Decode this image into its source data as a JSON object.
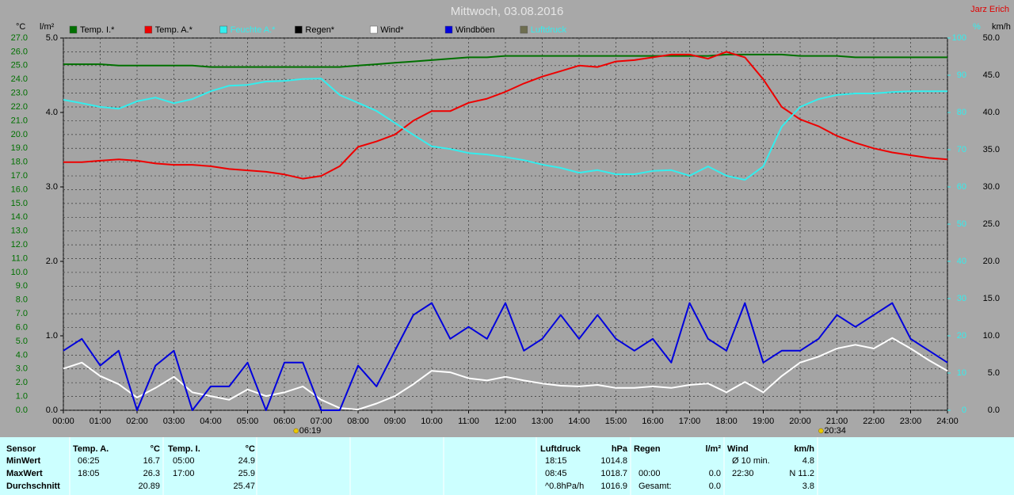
{
  "chart_data": {
    "type": "line",
    "title": "Mittwoch, 03.08.2016",
    "corner_label": "Jarz Erich",
    "y_label": "°C",
    "y3_label": "l/m²",
    "y2_label": "%",
    "y4_label": "km/h",
    "grid": true,
    "x": [
      0,
      0.5,
      1,
      1.5,
      2,
      2.5,
      3,
      3.5,
      4,
      4.5,
      5,
      5.5,
      6,
      6.5,
      7,
      7.5,
      8,
      8.5,
      9,
      9.5,
      10,
      10.5,
      11,
      11.5,
      12,
      12.5,
      13,
      13.5,
      14,
      14.5,
      15,
      15.5,
      16,
      16.5,
      17,
      17.5,
      18,
      18.5,
      19,
      19.5,
      20,
      20.5,
      21,
      21.5,
      22,
      22.5,
      23,
      23.5,
      24
    ],
    "xlim": [
      0,
      24
    ],
    "xticks": [
      {
        "value": 0,
        "label": "00:00"
      },
      {
        "value": 1,
        "label": "01:00"
      },
      {
        "value": 2,
        "label": "02:00"
      },
      {
        "value": 3,
        "label": "03:00"
      },
      {
        "value": 4,
        "label": "04:00"
      },
      {
        "value": 5,
        "label": "05:00"
      },
      {
        "value": 6,
        "label": "06:00"
      },
      {
        "value": 7,
        "label": "07:00"
      },
      {
        "value": 8,
        "label": "08:00"
      },
      {
        "value": 9,
        "label": "09:00"
      },
      {
        "value": 10,
        "label": "10:00"
      },
      {
        "value": 11,
        "label": "11:00"
      },
      {
        "value": 12,
        "label": "12:00"
      },
      {
        "value": 13,
        "label": "13:00"
      },
      {
        "value": 14,
        "label": "14:00"
      },
      {
        "value": 15,
        "label": "15:00"
      },
      {
        "value": 16,
        "label": "16:00"
      },
      {
        "value": 17,
        "label": "17:00"
      },
      {
        "value": 18,
        "label": "18:00"
      },
      {
        "value": 19,
        "label": "19:00"
      },
      {
        "value": 20,
        "label": "20:00"
      },
      {
        "value": 21,
        "label": "21:00"
      },
      {
        "value": 22,
        "label": "22:00"
      },
      {
        "value": 23,
        "label": "23:00"
      },
      {
        "value": 24,
        "label": "24:00"
      }
    ],
    "ylim": [
      0,
      27
    ],
    "yticks": [
      {
        "value": 0,
        "label": "0.0"
      },
      {
        "value": 1,
        "label": "1.0"
      },
      {
        "value": 2,
        "label": "2.0"
      },
      {
        "value": 3,
        "label": "3.0"
      },
      {
        "value": 4,
        "label": "4.0"
      },
      {
        "value": 5,
        "label": "5.0"
      },
      {
        "value": 6,
        "label": "6.0"
      },
      {
        "value": 7,
        "label": "7.0"
      },
      {
        "value": 8,
        "label": "8.0"
      },
      {
        "value": 9,
        "label": "9.0"
      },
      {
        "value": 10,
        "label": "10.0"
      },
      {
        "value": 11,
        "label": "11.0"
      },
      {
        "value": 12,
        "label": "12.0"
      },
      {
        "value": 13,
        "label": "13.0"
      },
      {
        "value": 14,
        "label": "14.0"
      },
      {
        "value": 15,
        "label": "15.0"
      },
      {
        "value": 16,
        "label": "16.0"
      },
      {
        "value": 17,
        "label": "17.0"
      },
      {
        "value": 18,
        "label": "18.0"
      },
      {
        "value": 19,
        "label": "19.0"
      },
      {
        "value": 20,
        "label": "20.0"
      },
      {
        "value": 21,
        "label": "21.0"
      },
      {
        "value": 22,
        "label": "22.0"
      },
      {
        "value": 23,
        "label": "23.0"
      },
      {
        "value": 24,
        "label": "24.0"
      },
      {
        "value": 25,
        "label": "25.0"
      },
      {
        "value": 26,
        "label": "26.0"
      },
      {
        "value": 27,
        "label": "27.0"
      }
    ],
    "y3lim": [
      0,
      5
    ],
    "y3ticks": [
      {
        "value": 0,
        "label": "0.0"
      },
      {
        "value": 1,
        "label": "1.0"
      },
      {
        "value": 2,
        "label": "2.0"
      },
      {
        "value": 3,
        "label": "3.0"
      },
      {
        "value": 4,
        "label": "4.0"
      },
      {
        "value": 5,
        "label": "5.0"
      }
    ],
    "y2lim": [
      0,
      100
    ],
    "y2ticks": [
      0,
      10,
      20,
      30,
      40,
      50,
      60,
      70,
      80,
      90,
      100
    ],
    "y4lim": [
      0,
      50
    ],
    "y4ticks": [
      {
        "value": 0,
        "label": "0.0"
      },
      {
        "value": 5,
        "label": "5.0"
      },
      {
        "value": 10,
        "label": "10.0"
      },
      {
        "value": 15,
        "label": "15.0"
      },
      {
        "value": 20,
        "label": "20.0"
      },
      {
        "value": 25,
        "label": "25.0"
      },
      {
        "value": 30,
        "label": "30.0"
      },
      {
        "value": 35,
        "label": "35.0"
      },
      {
        "value": 40,
        "label": "40.0"
      },
      {
        "value": 45,
        "label": "45.0"
      },
      {
        "value": 50,
        "label": "50.0"
      }
    ],
    "series": [
      {
        "name": "Temp. I.*",
        "color": "#007000",
        "values": [
          25.1,
          25.1,
          25.1,
          25.0,
          25.0,
          25.0,
          25.0,
          25.0,
          24.9,
          24.9,
          24.9,
          24.9,
          24.9,
          24.9,
          24.9,
          24.9,
          25.0,
          25.1,
          25.2,
          25.3,
          25.4,
          25.5,
          25.6,
          25.6,
          25.7,
          25.7,
          25.7,
          25.7,
          25.7,
          25.7,
          25.7,
          25.7,
          25.7,
          25.7,
          25.7,
          25.7,
          25.8,
          25.8,
          25.8,
          25.8,
          25.7,
          25.7,
          25.7,
          25.6,
          25.6,
          25.6,
          25.6,
          25.6,
          25.6
        ]
      },
      {
        "name": "Temp. A.*",
        "color": "#ee0000",
        "values": [
          18.0,
          18.0,
          18.1,
          18.2,
          18.1,
          17.9,
          17.8,
          17.8,
          17.7,
          17.5,
          17.4,
          17.3,
          17.1,
          16.8,
          17.0,
          17.7,
          19.1,
          19.5,
          20.0,
          21.0,
          21.7,
          21.7,
          22.3,
          22.6,
          23.1,
          23.7,
          24.2,
          24.6,
          25.0,
          24.9,
          25.3,
          25.4,
          25.6,
          25.8,
          25.8,
          25.5,
          26.0,
          25.6,
          24.0,
          22.0,
          21.1,
          20.6,
          19.9,
          19.4,
          19.0,
          18.7,
          18.5,
          18.3,
          18.2
        ]
      },
      {
        "name": "Feuchte A.*",
        "color": "#33eeee",
        "axis": "y2",
        "values": [
          83.4,
          82.5,
          81.5,
          81.0,
          83.0,
          84.0,
          82.5,
          83.6,
          85.7,
          87.2,
          87.4,
          88.3,
          88.5,
          89.0,
          89.1,
          84.7,
          82.6,
          80.4,
          77.2,
          74.0,
          70.9,
          70.2,
          69.1,
          68.7,
          68.0,
          67.2,
          66.0,
          65.1,
          63.8,
          64.5,
          63.4,
          63.4,
          64.3,
          64.5,
          63.0,
          65.5,
          63.0,
          61.9,
          65.5,
          76.2,
          81.5,
          83.6,
          84.7,
          85.1,
          85.1,
          85.5,
          85.7,
          85.7,
          85.7
        ]
      },
      {
        "name": "Regen*",
        "color": "#000000",
        "axis": "y3"
      },
      {
        "name": "Wind*",
        "color": "#ffffff",
        "axis": "y4",
        "values": [
          5.6,
          6.4,
          4.6,
          3.5,
          1.7,
          3.0,
          4.5,
          2.4,
          1.9,
          1.4,
          2.8,
          1.9,
          2.4,
          3.2,
          1.4,
          0.3,
          0.1,
          0.9,
          1.9,
          3.5,
          5.3,
          5.1,
          4.3,
          4.0,
          4.5,
          4.0,
          3.6,
          3.3,
          3.2,
          3.4,
          3.0,
          3.0,
          3.2,
          3.0,
          3.4,
          3.6,
          2.4,
          3.8,
          2.4,
          4.6,
          6.4,
          7.2,
          8.3,
          8.8,
          8.3,
          9.7,
          8.3,
          6.7,
          5.3
        ]
      },
      {
        "name": "Windböen",
        "color": "#0000dd",
        "axis": "y4",
        "values": [
          8.0,
          9.6,
          6.0,
          8.0,
          0.0,
          6.0,
          8.0,
          0.0,
          3.2,
          3.2,
          6.4,
          0.0,
          6.4,
          6.4,
          0.0,
          0.0,
          6.0,
          3.2,
          8.0,
          12.8,
          14.4,
          9.6,
          11.2,
          9.6,
          14.4,
          8.0,
          9.6,
          12.8,
          9.6,
          12.8,
          9.6,
          8.0,
          9.6,
          6.4,
          14.4,
          9.6,
          8.0,
          14.4,
          6.4,
          8.0,
          8.0,
          9.6,
          12.8,
          11.2,
          12.8,
          14.4,
          9.6,
          8.0,
          6.4
        ]
      },
      {
        "name": "Luftdruck",
        "color": "#6e6e50"
      }
    ],
    "annotations": [
      {
        "label": "06:19",
        "x": 6.3167
      },
      {
        "label": "20:34",
        "x": 20.567
      }
    ]
  },
  "table": {
    "row_labels_header": "Sensor",
    "row_labels": [
      "MinWert",
      "MaxWert",
      "Durchschnitt"
    ],
    "groups": [
      {
        "name": "Temp. A.",
        "unit": "°C",
        "cells": [
          [
            "06:25",
            "16.7"
          ],
          [
            "18:05",
            "26.3"
          ],
          [
            null,
            "20.89"
          ]
        ]
      },
      {
        "name": "Temp. I.",
        "unit": "°C",
        "cells": [
          [
            "05:00",
            "24.9"
          ],
          [
            "17:00",
            "25.9"
          ],
          [
            null,
            "25.47"
          ]
        ]
      },
      {
        "name": "Luftdruck",
        "unit": "hPa",
        "cells": [
          [
            "18:15",
            "1014.8"
          ],
          [
            "08:45",
            "1018.7"
          ],
          [
            "^0.8hPa/h",
            "1016.9"
          ]
        ]
      },
      {
        "name": "Regen",
        "unit": "l/m²",
        "cells": [
          [
            null,
            null
          ],
          [
            "00:00",
            "0.0"
          ],
          [
            "Gesamt:",
            "0.0"
          ]
        ]
      },
      {
        "name": "Wind",
        "unit": "km/h",
        "cells": [
          [
            "Ø 10 min.",
            "4.8"
          ],
          [
            "22:30",
            "N 11.2"
          ],
          [
            null,
            "3.8"
          ]
        ]
      }
    ]
  }
}
